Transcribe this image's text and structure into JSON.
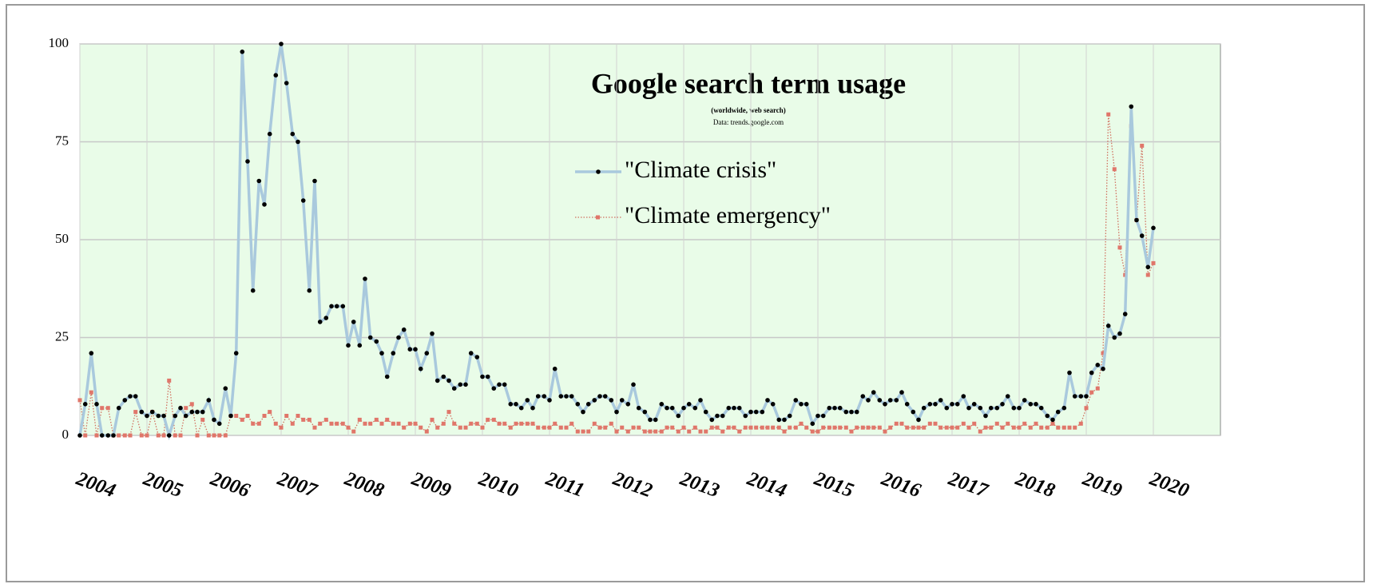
{
  "chart_data": {
    "type": "line",
    "title": "Google search term usage",
    "subtitle": "(worldwide, web search)",
    "source": "Data: trends.google.com",
    "x": [
      2004,
      2004.08,
      2004.17,
      2004.25,
      2004.33,
      2004.42,
      2004.5,
      2004.58,
      2004.67,
      2004.75,
      2004.83,
      2004.92,
      2005,
      2005.08,
      2005.17,
      2005.25,
      2005.33,
      2005.42,
      2005.5,
      2005.58,
      2005.67,
      2005.75,
      2005.83,
      2005.92,
      2006,
      2006.08,
      2006.17,
      2006.25,
      2006.33,
      2006.42,
      2006.5,
      2006.58,
      2006.67,
      2006.75,
      2006.83,
      2006.92,
      2007,
      2007.08,
      2007.17,
      2007.25,
      2007.33,
      2007.42,
      2007.5,
      2007.58,
      2007.67,
      2007.75,
      2007.83,
      2007.92,
      2008,
      2008.08,
      2008.17,
      2008.25,
      2008.33,
      2008.42,
      2008.5,
      2008.58,
      2008.67,
      2008.75,
      2008.83,
      2008.92,
      2009,
      2009.08,
      2009.17,
      2009.25,
      2009.33,
      2009.42,
      2009.5,
      2009.58,
      2009.67,
      2009.75,
      2009.83,
      2009.92,
      2010,
      2010.08,
      2010.17,
      2010.25,
      2010.33,
      2010.42,
      2010.5,
      2010.58,
      2010.67,
      2010.75,
      2010.83,
      2010.92,
      2011,
      2011.08,
      2011.17,
      2011.25,
      2011.33,
      2011.42,
      2011.5,
      2011.58,
      2011.67,
      2011.75,
      2011.83,
      2011.92,
      2012,
      2012.08,
      2012.17,
      2012.25,
      2012.33,
      2012.42,
      2012.5,
      2012.58,
      2012.67,
      2012.75,
      2012.83,
      2012.92,
      2013,
      2013.08,
      2013.17,
      2013.25,
      2013.33,
      2013.42,
      2013.5,
      2013.58,
      2013.67,
      2013.75,
      2013.83,
      2013.92,
      2014,
      2014.08,
      2014.17,
      2014.25,
      2014.33,
      2014.42,
      2014.5,
      2014.58,
      2014.67,
      2014.75,
      2014.83,
      2014.92,
      2015,
      2015.08,
      2015.17,
      2015.25,
      2015.33,
      2015.42,
      2015.5,
      2015.58,
      2015.67,
      2015.75,
      2015.83,
      2015.92,
      2016,
      2016.08,
      2016.17,
      2016.25,
      2016.33,
      2016.42,
      2016.5,
      2016.58,
      2016.67,
      2016.75,
      2016.83,
      2016.92,
      2017,
      2017.08,
      2017.17,
      2017.25,
      2017.33,
      2017.42,
      2017.5,
      2017.58,
      2017.67,
      2017.75,
      2017.83,
      2017.92,
      2018,
      2018.08,
      2018.17,
      2018.25,
      2018.33,
      2018.42,
      2018.5,
      2018.58,
      2018.67,
      2018.75,
      2018.83,
      2018.92,
      2019,
      2019.08,
      2019.17,
      2019.25,
      2019.33,
      2019.42,
      2019.5,
      2019.58,
      2019.67,
      2019.75,
      2019.83,
      2019.92,
      2020
    ],
    "series": [
      {
        "name": "\"Climate crisis\"",
        "color": "#a9c9dd",
        "marker_color": "#000000",
        "marker": "circle",
        "line_style": "solid",
        "values": [
          0,
          8,
          21,
          8,
          0,
          0,
          0,
          7,
          9,
          10,
          10,
          6,
          5,
          6,
          5,
          5,
          0,
          5,
          7,
          5,
          6,
          6,
          6,
          9,
          4,
          3,
          12,
          5,
          21,
          98,
          70,
          37,
          65,
          59,
          77,
          92,
          100,
          90,
          77,
          75,
          60,
          37,
          65,
          29,
          30,
          33,
          33,
          33,
          23,
          29,
          23,
          40,
          25,
          24,
          21,
          15,
          21,
          25,
          27,
          22,
          22,
          17,
          21,
          26,
          14,
          15,
          14,
          12,
          13,
          13,
          21,
          20,
          15,
          15,
          12,
          13,
          13,
          8,
          8,
          7,
          9,
          7,
          10,
          10,
          9,
          17,
          10,
          10,
          10,
          8,
          6,
          8,
          9,
          10,
          10,
          9,
          6,
          9,
          8,
          13,
          7,
          6,
          4,
          4,
          8,
          7,
          7,
          5,
          7,
          8,
          7,
          9,
          6,
          4,
          5,
          5,
          7,
          7,
          7,
          5,
          6,
          6,
          6,
          9,
          8,
          4,
          4,
          5,
          9,
          8,
          8,
          3,
          5,
          5,
          7,
          7,
          7,
          6,
          6,
          6,
          10,
          9,
          11,
          9,
          8,
          9,
          9,
          11,
          8,
          6,
          4,
          7,
          8,
          8,
          9,
          7,
          8,
          8,
          10,
          7,
          8,
          7,
          5,
          7,
          7,
          8,
          10,
          7,
          7,
          9,
          8,
          8,
          7,
          5,
          4,
          6,
          7,
          16,
          10,
          10,
          10,
          16,
          18,
          17,
          28,
          25,
          26,
          31,
          84,
          55,
          51,
          43,
          53
        ]
      },
      {
        "name": "\"Climate emergency\"",
        "color": "#d0705f",
        "marker_color": "#e0766a",
        "marker": "square",
        "line_style": "dotted",
        "values": [
          9,
          0,
          11,
          0,
          7,
          7,
          0,
          0,
          0,
          0,
          6,
          0,
          0,
          6,
          0,
          0,
          14,
          0,
          0,
          7,
          8,
          0,
          4,
          0,
          0,
          0,
          0,
          5,
          5,
          4,
          5,
          3,
          3,
          5,
          6,
          3,
          2,
          5,
          3,
          5,
          4,
          4,
          2,
          3,
          4,
          3,
          3,
          3,
          2,
          1,
          4,
          3,
          3,
          4,
          3,
          4,
          3,
          3,
          2,
          3,
          3,
          2,
          1,
          4,
          2,
          3,
          6,
          3,
          2,
          2,
          3,
          3,
          2,
          4,
          4,
          3,
          3,
          2,
          3,
          3,
          3,
          3,
          2,
          2,
          2,
          3,
          2,
          2,
          3,
          1,
          1,
          1,
          3,
          2,
          2,
          3,
          1,
          2,
          1,
          2,
          2,
          1,
          1,
          1,
          1,
          2,
          2,
          1,
          2,
          1,
          2,
          1,
          1,
          2,
          2,
          1,
          2,
          2,
          1,
          2,
          2,
          2,
          2,
          2,
          2,
          2,
          1,
          2,
          2,
          3,
          2,
          1,
          1,
          2,
          2,
          2,
          2,
          2,
          1,
          2,
          2,
          2,
          2,
          2,
          1,
          2,
          3,
          3,
          2,
          2,
          2,
          2,
          3,
          3,
          2,
          2,
          2,
          2,
          3,
          2,
          3,
          1,
          2,
          2,
          3,
          2,
          3,
          2,
          2,
          3,
          2,
          3,
          2,
          2,
          3,
          2,
          2,
          2,
          2,
          3,
          7,
          11,
          12,
          21,
          82,
          68,
          48,
          41,
          79,
          55,
          74,
          41,
          44
        ]
      }
    ],
    "xlim": [
      2004,
      2021
    ],
    "xticks": [
      2004,
      2005,
      2006,
      2007,
      2008,
      2009,
      2010,
      2011,
      2012,
      2013,
      2014,
      2015,
      2016,
      2017,
      2018,
      2019,
      2020
    ],
    "ylim": [
      0,
      100
    ],
    "yticks": [
      0,
      25,
      50,
      75,
      100
    ],
    "grid": true,
    "legend": "upper center",
    "background": "#e9fce8"
  }
}
